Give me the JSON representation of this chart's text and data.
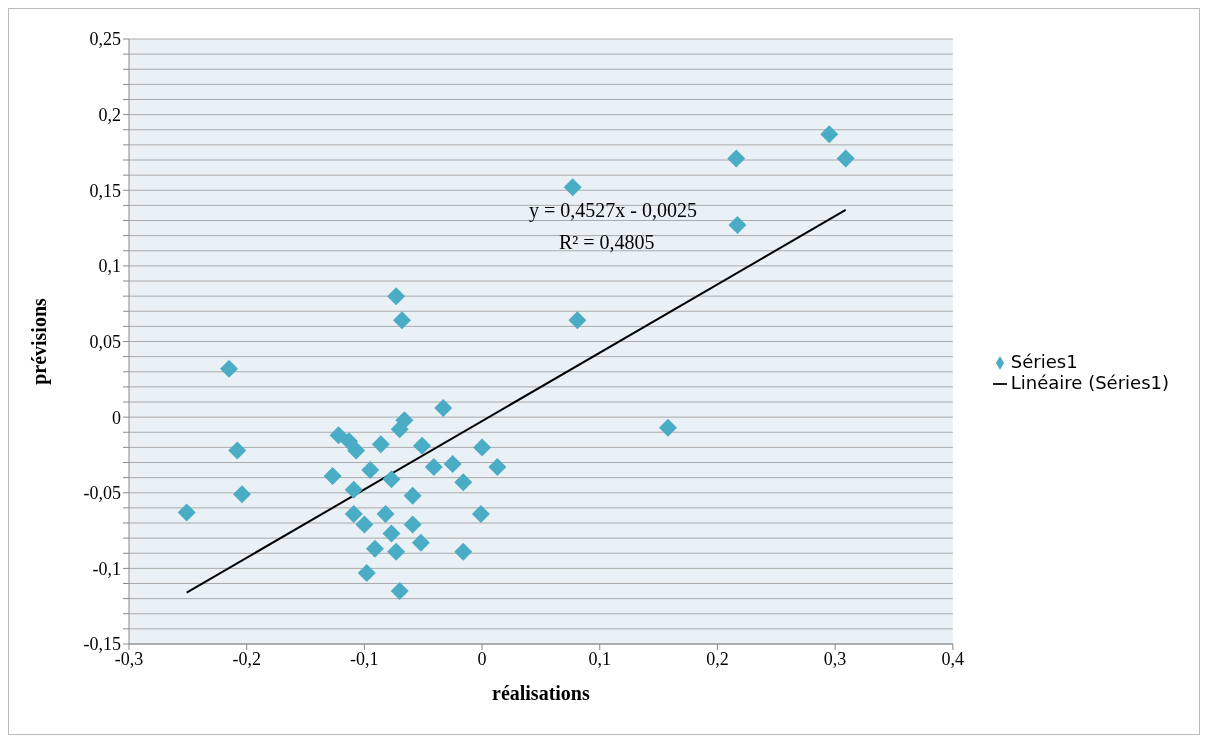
{
  "chart_data": {
    "type": "scatter",
    "xlabel": "réalisations",
    "ylabel": "prévisions",
    "legend": "right",
    "grid": "y",
    "marker": "diamond",
    "xlim": [
      -0.3,
      0.4
    ],
    "xticks": [
      {
        "value": -0.3,
        "label": "-0,3"
      },
      {
        "value": -0.2,
        "label": "-0,2"
      },
      {
        "value": -0.1,
        "label": "-0,1"
      },
      0,
      {
        "value": 0.1,
        "label": "0,1"
      },
      {
        "value": 0.2,
        "label": "0,2"
      },
      {
        "value": 0.3,
        "label": "0,3"
      },
      {
        "value": 0.4,
        "label": "0,4"
      }
    ],
    "ylim": [
      -0.15,
      0.25
    ],
    "yticks": [
      {
        "value": -0.15,
        "label": "-0,15"
      },
      {
        "value": -0.14,
        "label": null
      },
      {
        "value": -0.13,
        "label": null
      },
      {
        "value": -0.12,
        "label": null
      },
      {
        "value": -0.11,
        "label": null
      },
      {
        "value": -0.1,
        "label": "-0,1"
      },
      {
        "value": -0.09,
        "label": null
      },
      {
        "value": -0.08,
        "label": null
      },
      {
        "value": -0.07,
        "label": null
      },
      {
        "value": -0.06,
        "label": null
      },
      {
        "value": -0.05,
        "label": "-0,05"
      },
      {
        "value": -0.04,
        "label": null
      },
      {
        "value": -0.03,
        "label": null
      },
      {
        "value": -0.02,
        "label": null
      },
      {
        "value": -0.01,
        "label": null
      },
      0,
      {
        "value": 0.01,
        "label": null
      },
      {
        "value": 0.02,
        "label": null
      },
      {
        "value": 0.03,
        "label": null
      },
      {
        "value": 0.04,
        "label": null
      },
      {
        "value": 0.05,
        "label": "0,05"
      },
      {
        "value": 0.06,
        "label": null
      },
      {
        "value": 0.07,
        "label": null
      },
      {
        "value": 0.08,
        "label": null
      },
      {
        "value": 0.09,
        "label": null
      },
      {
        "value": 0.1,
        "label": "0,1"
      },
      {
        "value": 0.11,
        "label": null
      },
      {
        "value": 0.12,
        "label": null
      },
      {
        "value": 0.13,
        "label": null
      },
      {
        "value": 0.14,
        "label": null
      },
      {
        "value": 0.15,
        "label": "0,15"
      },
      {
        "value": 0.16,
        "label": null
      },
      {
        "value": 0.17,
        "label": null
      },
      {
        "value": 0.18,
        "label": null
      },
      {
        "value": 0.19,
        "label": null
      },
      {
        "value": 0.2,
        "label": "0,2"
      },
      {
        "value": 0.21,
        "label": null
      },
      {
        "value": 0.22,
        "label": null
      },
      {
        "value": 0.23,
        "label": null
      },
      {
        "value": 0.24,
        "label": null
      },
      {
        "value": 0.25,
        "label": "0,25"
      }
    ],
    "annotations": [
      "y = 0,4527x - 0,0025",
      "R² = 0,4805"
    ],
    "series": [
      {
        "name": "Séries1",
        "color": "#4bacc6",
        "x": [
          -0.251,
          -0.215,
          -0.204,
          -0.208,
          -0.107,
          0,
          -0.073,
          -0.068,
          -0.033,
          -0.066,
          -0.07,
          -0.122,
          -0.113,
          -0.086,
          -0.051,
          -0.025,
          -0.041,
          0.013,
          -0.127,
          -0.095,
          -0.016,
          -0.077,
          -0.109,
          -0.059,
          -0.109,
          -0.082,
          -0.001,
          -0.1,
          -0.059,
          -0.077,
          -0.091,
          -0.073,
          -0.052,
          -0.016,
          -0.098,
          -0.07,
          0.295,
          0.309,
          0.216,
          0.077,
          0.217,
          0.081,
          0.158
        ],
        "values": [
          -0.063,
          0.032,
          -0.051,
          -0.022,
          -0.022,
          -0.02,
          0.08,
          0.064,
          0.006,
          -0.002,
          -0.008,
          -0.012,
          -0.016,
          -0.018,
          -0.019,
          -0.031,
          -0.033,
          -0.033,
          -0.039,
          -0.035,
          -0.043,
          -0.041,
          -0.048,
          -0.052,
          -0.064,
          -0.064,
          -0.064,
          -0.071,
          -0.071,
          -0.077,
          -0.087,
          -0.089,
          -0.083,
          -0.089,
          -0.103,
          -0.115,
          0.187,
          0.171,
          0.171,
          0.152,
          0.127,
          0.064,
          -0.007
        ]
      },
      {
        "name": "Linéaire (Séries1)",
        "type": "line",
        "color": "#000000",
        "line_style": "solid",
        "marker": "none",
        "x": [
          -0.251,
          0.309
        ],
        "values": [
          -0.116,
          0.137
        ]
      }
    ]
  }
}
